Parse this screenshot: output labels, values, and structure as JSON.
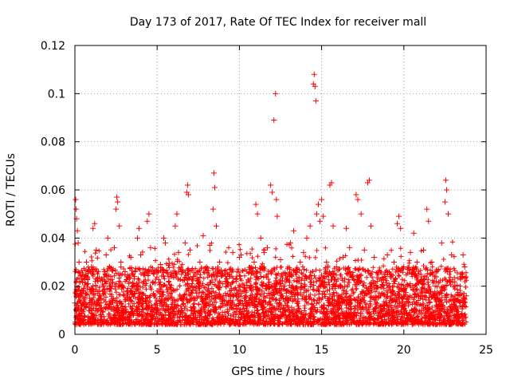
{
  "colors": {
    "series": "#ff0000",
    "axis": "#000000",
    "grid": "#a0a0a0"
  },
  "chart_data": {
    "type": "scatter",
    "title": "Day 173 of 2017, Rate Of TEC Index for receiver mall",
    "xlabel": "GPS time / hours",
    "ylabel": "ROTI / TECUs",
    "xlim": [
      0,
      25
    ],
    "ylim": [
      0,
      0.12
    ],
    "xticks": [
      0,
      5,
      10,
      15,
      20,
      25
    ],
    "xtick_labels": [
      "0",
      "5",
      "10",
      "15",
      "20",
      "25"
    ],
    "yticks": [
      0,
      0.02,
      0.04,
      0.06,
      0.08,
      0.1,
      0.12
    ],
    "ytick_labels": [
      "0",
      "0.02",
      "0.04",
      "0.06",
      "0.08",
      "0.1",
      "0.12"
    ],
    "grid": true,
    "marker": "+",
    "series": [
      {
        "name": "ROTI",
        "points": [
          [
            0.0,
            0.013
          ],
          [
            0.05,
            0.056
          ],
          [
            0.08,
            0.052
          ],
          [
            0.1,
            0.048
          ],
          [
            0.15,
            0.043
          ],
          [
            0.2,
            0.038
          ],
          [
            0.25,
            0.03
          ],
          [
            0.3,
            0.022
          ],
          [
            0.35,
            0.017
          ],
          [
            0.4,
            0.012
          ],
          [
            0.5,
            0.018
          ],
          [
            0.6,
            0.024
          ],
          [
            0.7,
            0.03
          ],
          [
            0.8,
            0.021
          ],
          [
            0.9,
            0.015
          ],
          [
            1.0,
            0.028
          ],
          [
            1.1,
            0.044
          ],
          [
            1.2,
            0.046
          ],
          [
            1.3,
            0.035
          ],
          [
            1.4,
            0.022
          ],
          [
            1.5,
            0.018
          ],
          [
            1.6,
            0.013
          ],
          [
            1.7,
            0.02
          ],
          [
            1.8,
            0.026
          ],
          [
            1.9,
            0.033
          ],
          [
            2.0,
            0.04
          ],
          [
            2.1,
            0.028
          ],
          [
            2.2,
            0.019
          ],
          [
            2.3,
            0.014
          ],
          [
            2.4,
            0.036
          ],
          [
            2.5,
            0.052
          ],
          [
            2.55,
            0.057
          ],
          [
            2.6,
            0.055
          ],
          [
            2.7,
            0.045
          ],
          [
            2.8,
            0.03
          ],
          [
            2.9,
            0.02
          ],
          [
            3.0,
            0.016
          ],
          [
            3.2,
            0.024
          ],
          [
            3.4,
            0.032
          ],
          [
            3.6,
            0.02
          ],
          [
            3.8,
            0.04
          ],
          [
            3.9,
            0.044
          ],
          [
            4.0,
            0.033
          ],
          [
            4.2,
            0.022
          ],
          [
            4.4,
            0.047
          ],
          [
            4.5,
            0.05
          ],
          [
            4.6,
            0.036
          ],
          [
            4.8,
            0.025
          ],
          [
            5.0,
            0.018
          ],
          [
            5.2,
            0.029
          ],
          [
            5.4,
            0.04
          ],
          [
            5.5,
            0.038
          ],
          [
            5.7,
            0.022
          ],
          [
            5.9,
            0.015
          ],
          [
            6.1,
            0.045
          ],
          [
            6.2,
            0.05
          ],
          [
            6.3,
            0.034
          ],
          [
            6.5,
            0.026
          ],
          [
            6.7,
            0.038
          ],
          [
            6.8,
            0.059
          ],
          [
            6.85,
            0.062
          ],
          [
            6.9,
            0.058
          ],
          [
            7.0,
            0.035
          ],
          [
            7.2,
            0.024
          ],
          [
            7.4,
            0.017
          ],
          [
            7.6,
            0.03
          ],
          [
            7.8,
            0.041
          ],
          [
            8.0,
            0.028
          ],
          [
            8.2,
            0.037
          ],
          [
            8.4,
            0.052
          ],
          [
            8.45,
            0.067
          ],
          [
            8.5,
            0.061
          ],
          [
            8.6,
            0.045
          ],
          [
            8.8,
            0.03
          ],
          [
            9.0,
            0.021
          ],
          [
            9.2,
            0.016
          ],
          [
            9.4,
            0.027
          ],
          [
            9.6,
            0.034
          ],
          [
            9.8,
            0.022
          ],
          [
            10.0,
            0.032
          ],
          [
            10.1,
            0.033
          ],
          [
            10.3,
            0.015
          ],
          [
            10.5,
            0.012
          ],
          [
            10.7,
            0.02
          ],
          [
            10.9,
            0.03
          ],
          [
            11.0,
            0.054
          ],
          [
            11.1,
            0.05
          ],
          [
            11.3,
            0.04
          ],
          [
            11.5,
            0.034
          ],
          [
            11.7,
            0.036
          ],
          [
            11.9,
            0.062
          ],
          [
            12.0,
            0.059
          ],
          [
            12.1,
            0.089
          ],
          [
            12.2,
            0.1
          ],
          [
            12.25,
            0.056
          ],
          [
            12.3,
            0.049
          ],
          [
            12.5,
            0.031
          ],
          [
            12.7,
            0.02
          ],
          [
            12.9,
            0.015
          ],
          [
            13.1,
            0.038
          ],
          [
            13.3,
            0.043
          ],
          [
            13.5,
            0.026
          ],
          [
            13.7,
            0.03
          ],
          [
            13.9,
            0.034
          ],
          [
            14.1,
            0.04
          ],
          [
            14.3,
            0.045
          ],
          [
            14.5,
            0.104
          ],
          [
            14.55,
            0.108
          ],
          [
            14.6,
            0.103
          ],
          [
            14.65,
            0.097
          ],
          [
            14.7,
            0.05
          ],
          [
            14.8,
            0.054
          ],
          [
            14.9,
            0.047
          ],
          [
            15.0,
            0.056
          ],
          [
            15.1,
            0.049
          ],
          [
            15.3,
            0.03
          ],
          [
            15.5,
            0.062
          ],
          [
            15.6,
            0.063
          ],
          [
            15.7,
            0.045
          ],
          [
            15.9,
            0.028
          ],
          [
            16.1,
            0.02
          ],
          [
            16.3,
            0.032
          ],
          [
            16.5,
            0.044
          ],
          [
            16.7,
            0.036
          ],
          [
            16.9,
            0.024
          ],
          [
            17.1,
            0.058
          ],
          [
            17.2,
            0.056
          ],
          [
            17.4,
            0.05
          ],
          [
            17.6,
            0.035
          ],
          [
            17.8,
            0.063
          ],
          [
            17.9,
            0.064
          ],
          [
            18.0,
            0.045
          ],
          [
            18.2,
            0.032
          ],
          [
            18.4,
            0.022
          ],
          [
            18.6,
            0.016
          ],
          [
            18.8,
            0.025
          ],
          [
            19.0,
            0.033
          ],
          [
            19.2,
            0.024
          ],
          [
            19.4,
            0.03
          ],
          [
            19.6,
            0.046
          ],
          [
            19.7,
            0.049
          ],
          [
            19.8,
            0.044
          ],
          [
            20.0,
            0.028
          ],
          [
            20.2,
            0.02
          ],
          [
            20.4,
            0.034
          ],
          [
            20.6,
            0.042
          ],
          [
            20.8,
            0.03
          ],
          [
            21.0,
            0.022
          ],
          [
            21.2,
            0.035
          ],
          [
            21.4,
            0.052
          ],
          [
            21.5,
            0.047
          ],
          [
            21.7,
            0.03
          ],
          [
            21.9,
            0.02
          ],
          [
            22.1,
            0.027
          ],
          [
            22.3,
            0.038
          ],
          [
            22.5,
            0.055
          ],
          [
            22.55,
            0.064
          ],
          [
            22.6,
            0.06
          ],
          [
            22.7,
            0.05
          ],
          [
            22.9,
            0.033
          ],
          [
            23.1,
            0.02
          ],
          [
            23.3,
            0.014
          ],
          [
            23.5,
            0.024
          ],
          [
            23.6,
            0.033
          ],
          [
            23.7,
            0.028
          ],
          [
            23.8,
            0.016
          ]
        ]
      }
    ]
  }
}
